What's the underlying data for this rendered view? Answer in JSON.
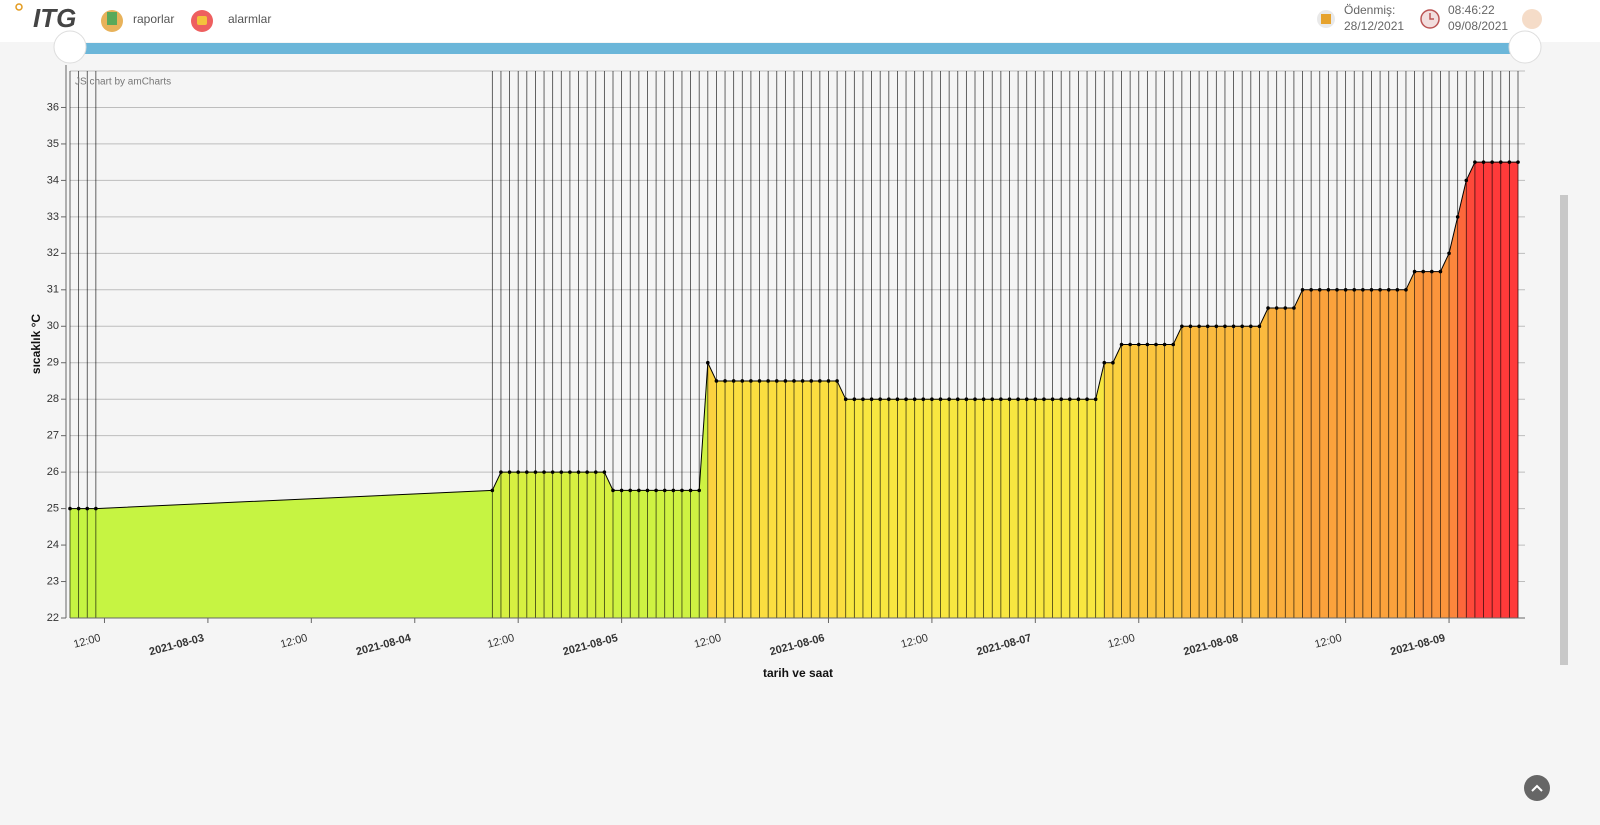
{
  "header": {
    "logo": "ITG",
    "nav": [
      "raporlar",
      "alarmlar"
    ],
    "paid_label": "Ödenmiş:",
    "paid_date": "28/12/2021",
    "time": "08:46:22",
    "date": "09/08/2021"
  },
  "chart_data": {
    "type": "area",
    "credit": "JS chart by amCharts",
    "xlabel": "tarih ve saat",
    "ylabel": "sıcaklık °C",
    "x": [
      "2021-08-02T08:00",
      "2021-08-02T09:00",
      "2021-08-02T10:00",
      "2021-08-02T11:00",
      "2021-08-04T09:00",
      "2021-08-04T10:00",
      "2021-08-04T11:00",
      "2021-08-04T12:00",
      "2021-08-04T13:00",
      "2021-08-04T14:00",
      "2021-08-04T15:00",
      "2021-08-04T16:00",
      "2021-08-04T17:00",
      "2021-08-04T18:00",
      "2021-08-04T19:00",
      "2021-08-04T20:00",
      "2021-08-04T21:00",
      "2021-08-04T22:00",
      "2021-08-04T23:00",
      "2021-08-05T00:00",
      "2021-08-05T01:00",
      "2021-08-05T02:00",
      "2021-08-05T03:00",
      "2021-08-05T04:00",
      "2021-08-05T05:00",
      "2021-08-05T06:00",
      "2021-08-05T07:00",
      "2021-08-05T08:00",
      "2021-08-05T09:00",
      "2021-08-05T10:00",
      "2021-08-05T11:00",
      "2021-08-05T12:00",
      "2021-08-05T13:00",
      "2021-08-05T14:00",
      "2021-08-05T15:00",
      "2021-08-05T16:00",
      "2021-08-05T17:00",
      "2021-08-05T18:00",
      "2021-08-05T19:00",
      "2021-08-05T20:00",
      "2021-08-05T21:00",
      "2021-08-05T22:00",
      "2021-08-05T23:00",
      "2021-08-06T00:00",
      "2021-08-06T01:00",
      "2021-08-06T02:00",
      "2021-08-06T03:00",
      "2021-08-06T04:00",
      "2021-08-06T05:00",
      "2021-08-06T06:00",
      "2021-08-06T07:00",
      "2021-08-06T08:00",
      "2021-08-06T09:00",
      "2021-08-06T10:00",
      "2021-08-06T11:00",
      "2021-08-06T12:00",
      "2021-08-06T13:00",
      "2021-08-06T14:00",
      "2021-08-06T15:00",
      "2021-08-06T16:00",
      "2021-08-06T17:00",
      "2021-08-06T18:00",
      "2021-08-06T19:00",
      "2021-08-06T20:00",
      "2021-08-06T21:00",
      "2021-08-06T22:00",
      "2021-08-06T23:00",
      "2021-08-07T00:00",
      "2021-08-07T01:00",
      "2021-08-07T02:00",
      "2021-08-07T03:00",
      "2021-08-07T04:00",
      "2021-08-07T05:00",
      "2021-08-07T06:00",
      "2021-08-07T07:00",
      "2021-08-07T08:00",
      "2021-08-07T09:00",
      "2021-08-07T10:00",
      "2021-08-07T11:00",
      "2021-08-07T12:00",
      "2021-08-07T13:00",
      "2021-08-07T14:00",
      "2021-08-07T15:00",
      "2021-08-07T16:00",
      "2021-08-07T17:00",
      "2021-08-07T18:00",
      "2021-08-07T19:00",
      "2021-08-07T20:00",
      "2021-08-07T21:00",
      "2021-08-07T22:00",
      "2021-08-07T23:00",
      "2021-08-08T00:00",
      "2021-08-08T01:00",
      "2021-08-08T02:00",
      "2021-08-08T03:00",
      "2021-08-08T04:00",
      "2021-08-08T05:00",
      "2021-08-08T06:00",
      "2021-08-08T07:00",
      "2021-08-08T08:00",
      "2021-08-08T09:00",
      "2021-08-08T10:00",
      "2021-08-08T11:00",
      "2021-08-08T12:00",
      "2021-08-08T13:00",
      "2021-08-08T14:00",
      "2021-08-08T15:00",
      "2021-08-08T16:00",
      "2021-08-08T17:00",
      "2021-08-08T18:00",
      "2021-08-08T19:00",
      "2021-08-08T20:00",
      "2021-08-08T21:00",
      "2021-08-08T22:00",
      "2021-08-08T23:00",
      "2021-08-09T00:00",
      "2021-08-09T01:00",
      "2021-08-09T02:00",
      "2021-08-09T03:00",
      "2021-08-09T04:00",
      "2021-08-09T05:00",
      "2021-08-09T06:00",
      "2021-08-09T07:00",
      "2021-08-09T08:00"
    ],
    "values": [
      25,
      25,
      25,
      25,
      25.5,
      26,
      26,
      26,
      26,
      26,
      26,
      26,
      26,
      26,
      26,
      26,
      26,
      26,
      25.5,
      25.5,
      25.5,
      25.5,
      25.5,
      25.5,
      25.5,
      25.5,
      25.5,
      25.5,
      25.5,
      29,
      28.5,
      28.5,
      28.5,
      28.5,
      28.5,
      28.5,
      28.5,
      28.5,
      28.5,
      28.5,
      28.5,
      28.5,
      28.5,
      28.5,
      28.5,
      28,
      28,
      28,
      28,
      28,
      28,
      28,
      28,
      28,
      28,
      28,
      28,
      28,
      28,
      28,
      28,
      28,
      28,
      28,
      28,
      28,
      28,
      28,
      28,
      28,
      28,
      28,
      28,
      28,
      28,
      29,
      29,
      29.5,
      29.5,
      29.5,
      29.5,
      29.5,
      29.5,
      29.5,
      30,
      30,
      30,
      30,
      30,
      30,
      30,
      30,
      30,
      30,
      30.5,
      30.5,
      30.5,
      30.5,
      31,
      31,
      31,
      31,
      31,
      31,
      31,
      31,
      31,
      31,
      31,
      31,
      31,
      31.5,
      31.5,
      31.5,
      31.5,
      32,
      33,
      34,
      34.5,
      34.5,
      34.5,
      34.5,
      34.5,
      34.5
    ],
    "xlim": [
      "2021-08-02T08:00",
      "2021-08-09T08:00"
    ],
    "xticks": [
      {
        "value": "2021-08-02T12:00",
        "label": "12:00"
      },
      {
        "value": "2021-08-03T00:00",
        "label": "2021-08-03"
      },
      {
        "value": "2021-08-03T12:00",
        "label": "12:00"
      },
      {
        "value": "2021-08-04T00:00",
        "label": "2021-08-04"
      },
      {
        "value": "2021-08-04T12:00",
        "label": "12:00"
      },
      {
        "value": "2021-08-05T00:00",
        "label": "2021-08-05"
      },
      {
        "value": "2021-08-05T12:00",
        "label": "12:00"
      },
      {
        "value": "2021-08-06T00:00",
        "label": "2021-08-06"
      },
      {
        "value": "2021-08-06T12:00",
        "label": "12:00"
      },
      {
        "value": "2021-08-07T00:00",
        "label": "2021-08-07"
      },
      {
        "value": "2021-08-07T12:00",
        "label": "12:00"
      },
      {
        "value": "2021-08-08T00:00",
        "label": "2021-08-08"
      },
      {
        "value": "2021-08-08T12:00",
        "label": "12:00"
      },
      {
        "value": "2021-08-09T00:00",
        "label": "2021-08-09"
      }
    ],
    "ylim": [
      22,
      37
    ],
    "yticks": [
      22,
      23,
      24,
      25,
      26,
      27,
      28,
      29,
      30,
      31,
      32,
      33,
      34,
      35,
      36
    ],
    "grid": true,
    "line_color": "#000000",
    "fill_colors": [
      "#c6f442",
      "#fbe640",
      "#fb9a3c",
      "#ff3a3a"
    ]
  }
}
